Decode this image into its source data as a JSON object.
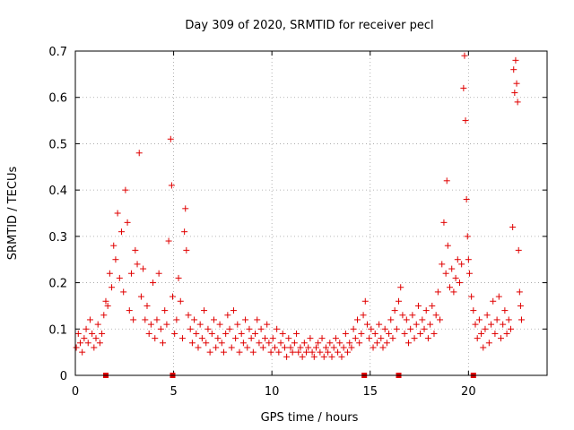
{
  "chart_data": {
    "type": "scatter",
    "title": "Day 309 of 2020, SRMTID for receiver pecl",
    "xlabel": "GPS time / hours",
    "ylabel": "SRMTID / TECUs",
    "xlim": [
      0,
      24
    ],
    "ylim": [
      0,
      0.7
    ],
    "xticks": [
      0,
      5,
      10,
      15,
      20
    ],
    "yticks": [
      0,
      0.1,
      0.2,
      0.3,
      0.4,
      0.5,
      0.6,
      0.7
    ],
    "grid": true,
    "marker": "+",
    "color": "#e00000",
    "baseline_markers_x": [
      1.55,
      4.95,
      14.7,
      16.45,
      20.25
    ],
    "series": [
      {
        "name": "SRMTID",
        "points": [
          [
            0.05,
            0.06
          ],
          [
            0.15,
            0.09
          ],
          [
            0.25,
            0.07
          ],
          [
            0.35,
            0.05
          ],
          [
            0.45,
            0.08
          ],
          [
            0.55,
            0.1
          ],
          [
            0.65,
            0.07
          ],
          [
            0.75,
            0.12
          ],
          [
            0.85,
            0.09
          ],
          [
            0.95,
            0.06
          ],
          [
            1.05,
            0.08
          ],
          [
            1.15,
            0.11
          ],
          [
            1.25,
            0.07
          ],
          [
            1.35,
            0.09
          ],
          [
            1.45,
            0.13
          ],
          [
            1.55,
            0.16
          ],
          [
            1.65,
            0.15
          ],
          [
            1.75,
            0.22
          ],
          [
            1.85,
            0.19
          ],
          [
            1.95,
            0.28
          ],
          [
            2.05,
            0.25
          ],
          [
            2.15,
            0.35
          ],
          [
            2.25,
            0.21
          ],
          [
            2.35,
            0.31
          ],
          [
            2.45,
            0.18
          ],
          [
            2.55,
            0.4
          ],
          [
            2.65,
            0.33
          ],
          [
            2.75,
            0.14
          ],
          [
            2.85,
            0.22
          ],
          [
            2.95,
            0.12
          ],
          [
            3.05,
            0.27
          ],
          [
            3.15,
            0.24
          ],
          [
            3.25,
            0.48
          ],
          [
            3.35,
            0.17
          ],
          [
            3.45,
            0.23
          ],
          [
            3.55,
            0.12
          ],
          [
            3.65,
            0.15
          ],
          [
            3.75,
            0.09
          ],
          [
            3.85,
            0.11
          ],
          [
            3.95,
            0.2
          ],
          [
            4.05,
            0.08
          ],
          [
            4.15,
            0.12
          ],
          [
            4.25,
            0.22
          ],
          [
            4.35,
            0.1
          ],
          [
            4.45,
            0.07
          ],
          [
            4.55,
            0.14
          ],
          [
            4.65,
            0.11
          ],
          [
            4.75,
            0.29
          ],
          [
            4.85,
            0.51
          ],
          [
            4.9,
            0.41
          ],
          [
            4.95,
            0.17
          ],
          [
            5.05,
            0.09
          ],
          [
            5.15,
            0.12
          ],
          [
            5.25,
            0.21
          ],
          [
            5.35,
            0.16
          ],
          [
            5.45,
            0.08
          ],
          [
            5.55,
            0.31
          ],
          [
            5.6,
            0.36
          ],
          [
            5.65,
            0.27
          ],
          [
            5.75,
            0.13
          ],
          [
            5.85,
            0.1
          ],
          [
            5.95,
            0.07
          ],
          [
            6.05,
            0.12
          ],
          [
            6.15,
            0.09
          ],
          [
            6.25,
            0.06
          ],
          [
            6.35,
            0.11
          ],
          [
            6.45,
            0.08
          ],
          [
            6.55,
            0.14
          ],
          [
            6.65,
            0.07
          ],
          [
            6.75,
            0.1
          ],
          [
            6.85,
            0.05
          ],
          [
            6.95,
            0.09
          ],
          [
            7.05,
            0.12
          ],
          [
            7.15,
            0.06
          ],
          [
            7.25,
            0.08
          ],
          [
            7.35,
            0.11
          ],
          [
            7.45,
            0.07
          ],
          [
            7.55,
            0.05
          ],
          [
            7.65,
            0.09
          ],
          [
            7.75,
            0.13
          ],
          [
            7.85,
            0.1
          ],
          [
            7.95,
            0.06
          ],
          [
            8.05,
            0.14
          ],
          [
            8.15,
            0.08
          ],
          [
            8.25,
            0.11
          ],
          [
            8.35,
            0.05
          ],
          [
            8.45,
            0.09
          ],
          [
            8.55,
            0.07
          ],
          [
            8.65,
            0.12
          ],
          [
            8.75,
            0.06
          ],
          [
            8.85,
            0.1
          ],
          [
            8.95,
            0.08
          ],
          [
            9.05,
            0.05
          ],
          [
            9.15,
            0.09
          ],
          [
            9.25,
            0.12
          ],
          [
            9.35,
            0.07
          ],
          [
            9.45,
            0.1
          ],
          [
            9.55,
            0.06
          ],
          [
            9.65,
            0.08
          ],
          [
            9.75,
            0.11
          ],
          [
            9.85,
            0.07
          ],
          [
            9.95,
            0.05
          ],
          [
            10.05,
            0.08
          ],
          [
            10.15,
            0.06
          ],
          [
            10.25,
            0.1
          ],
          [
            10.35,
            0.05
          ],
          [
            10.45,
            0.07
          ],
          [
            10.55,
            0.09
          ],
          [
            10.65,
            0.06
          ],
          [
            10.75,
            0.04
          ],
          [
            10.85,
            0.08
          ],
          [
            10.95,
            0.06
          ],
          [
            11.05,
            0.05
          ],
          [
            11.15,
            0.07
          ],
          [
            11.25,
            0.09
          ],
          [
            11.35,
            0.05
          ],
          [
            11.45,
            0.06
          ],
          [
            11.55,
            0.04
          ],
          [
            11.65,
            0.07
          ],
          [
            11.75,
            0.05
          ],
          [
            11.85,
            0.06
          ],
          [
            11.95,
            0.08
          ],
          [
            12.05,
            0.05
          ],
          [
            12.15,
            0.04
          ],
          [
            12.25,
            0.06
          ],
          [
            12.35,
            0.07
          ],
          [
            12.45,
            0.05
          ],
          [
            12.55,
            0.08
          ],
          [
            12.65,
            0.04
          ],
          [
            12.75,
            0.06
          ],
          [
            12.85,
            0.05
          ],
          [
            12.95,
            0.07
          ],
          [
            13.05,
            0.04
          ],
          [
            13.15,
            0.06
          ],
          [
            13.25,
            0.08
          ],
          [
            13.35,
            0.05
          ],
          [
            13.45,
            0.07
          ],
          [
            13.55,
            0.04
          ],
          [
            13.65,
            0.06
          ],
          [
            13.75,
            0.09
          ],
          [
            13.85,
            0.05
          ],
          [
            13.95,
            0.07
          ],
          [
            14.05,
            0.06
          ],
          [
            14.15,
            0.1
          ],
          [
            14.25,
            0.08
          ],
          [
            14.35,
            0.12
          ],
          [
            14.45,
            0.07
          ],
          [
            14.55,
            0.09
          ],
          [
            14.65,
            0.13
          ],
          [
            14.75,
            0.16
          ],
          [
            14.85,
            0.11
          ],
          [
            14.95,
            0.08
          ],
          [
            15.05,
            0.1
          ],
          [
            15.15,
            0.06
          ],
          [
            15.25,
            0.09
          ],
          [
            15.35,
            0.07
          ],
          [
            15.45,
            0.11
          ],
          [
            15.55,
            0.08
          ],
          [
            15.65,
            0.06
          ],
          [
            15.75,
            0.1
          ],
          [
            15.85,
            0.07
          ],
          [
            15.95,
            0.09
          ],
          [
            16.05,
            0.12
          ],
          [
            16.15,
            0.08
          ],
          [
            16.25,
            0.14
          ],
          [
            16.35,
            0.1
          ],
          [
            16.45,
            0.16
          ],
          [
            16.55,
            0.19
          ],
          [
            16.65,
            0.13
          ],
          [
            16.75,
            0.09
          ],
          [
            16.85,
            0.12
          ],
          [
            16.95,
            0.07
          ],
          [
            17.05,
            0.1
          ],
          [
            17.15,
            0.13
          ],
          [
            17.25,
            0.08
          ],
          [
            17.35,
            0.11
          ],
          [
            17.45,
            0.15
          ],
          [
            17.55,
            0.09
          ],
          [
            17.65,
            0.12
          ],
          [
            17.75,
            0.1
          ],
          [
            17.85,
            0.14
          ],
          [
            17.95,
            0.08
          ],
          [
            18.05,
            0.11
          ],
          [
            18.15,
            0.15
          ],
          [
            18.25,
            0.09
          ],
          [
            18.35,
            0.13
          ],
          [
            18.45,
            0.18
          ],
          [
            18.55,
            0.12
          ],
          [
            18.65,
            0.24
          ],
          [
            18.75,
            0.33
          ],
          [
            18.85,
            0.22
          ],
          [
            18.9,
            0.42
          ],
          [
            18.95,
            0.28
          ],
          [
            19.05,
            0.19
          ],
          [
            19.15,
            0.23
          ],
          [
            19.25,
            0.18
          ],
          [
            19.35,
            0.21
          ],
          [
            19.45,
            0.25
          ],
          [
            19.55,
            0.2
          ],
          [
            19.65,
            0.24
          ],
          [
            19.75,
            0.62
          ],
          [
            19.8,
            0.69
          ],
          [
            19.85,
            0.55
          ],
          [
            19.9,
            0.38
          ],
          [
            19.95,
            0.3
          ],
          [
            20.0,
            0.25
          ],
          [
            20.05,
            0.22
          ],
          [
            20.15,
            0.17
          ],
          [
            20.25,
            0.14
          ],
          [
            20.35,
            0.11
          ],
          [
            20.45,
            0.08
          ],
          [
            20.55,
            0.12
          ],
          [
            20.65,
            0.09
          ],
          [
            20.75,
            0.06
          ],
          [
            20.85,
            0.1
          ],
          [
            20.95,
            0.13
          ],
          [
            21.05,
            0.07
          ],
          [
            21.15,
            0.11
          ],
          [
            21.25,
            0.16
          ],
          [
            21.35,
            0.09
          ],
          [
            21.45,
            0.12
          ],
          [
            21.55,
            0.17
          ],
          [
            21.65,
            0.08
          ],
          [
            21.75,
            0.11
          ],
          [
            21.85,
            0.14
          ],
          [
            21.95,
            0.09
          ],
          [
            22.05,
            0.12
          ],
          [
            22.15,
            0.1
          ],
          [
            22.25,
            0.32
          ],
          [
            22.3,
            0.66
          ],
          [
            22.35,
            0.61
          ],
          [
            22.4,
            0.68
          ],
          [
            22.45,
            0.63
          ],
          [
            22.5,
            0.59
          ],
          [
            22.55,
            0.27
          ],
          [
            22.6,
            0.18
          ],
          [
            22.65,
            0.15
          ],
          [
            22.7,
            0.12
          ]
        ]
      }
    ]
  }
}
